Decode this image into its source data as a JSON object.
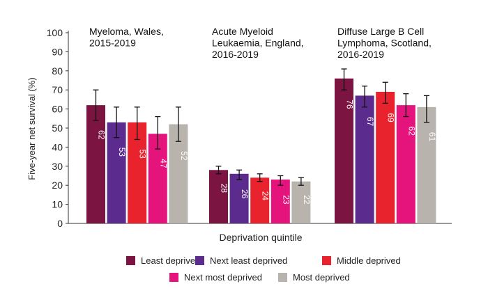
{
  "chart_data": {
    "type": "bar",
    "ylabel": "Five-year net survival (%)",
    "xlabel": "Deprivation quintile",
    "ylim": [
      0,
      100
    ],
    "yticks": [
      0,
      10,
      20,
      30,
      40,
      50,
      60,
      70,
      80,
      90,
      100
    ],
    "grid": false,
    "legend_position": "bottom",
    "groups": [
      {
        "title_lines": [
          "Myeloma, Wales,",
          "2015-2019"
        ],
        "values": [
          62,
          53,
          53,
          47,
          52
        ],
        "value_labels": [
          "62",
          "53",
          "53",
          "47",
          "52"
        ],
        "error_low": [
          54,
          45,
          44,
          39,
          43
        ],
        "error_high": [
          70,
          61,
          61,
          56,
          61
        ]
      },
      {
        "title_lines": [
          "Acute Myeloid",
          "Leukaemia, England,",
          "2016-2019"
        ],
        "values": [
          28,
          26,
          24,
          23,
          22
        ],
        "value_labels": [
          "28",
          "26",
          "24",
          "23",
          "22"
        ],
        "error_low": [
          26,
          23,
          22,
          20,
          20
        ],
        "error_high": [
          30,
          28,
          26,
          25,
          24
        ]
      },
      {
        "title_lines": [
          "Diffuse Large B Cell",
          "Lymphoma, Scotland,",
          "2016-2019"
        ],
        "values": [
          76,
          67,
          69,
          62,
          61
        ],
        "value_labels": [
          "76",
          "67",
          "69",
          "62",
          "61"
        ],
        "error_low": [
          70,
          61,
          63,
          56,
          53
        ],
        "error_high": [
          81,
          72,
          74,
          68,
          67
        ]
      }
    ],
    "series": [
      {
        "name": "Least deprived",
        "color": "#7b1441"
      },
      {
        "name": "Next least deprived",
        "color": "#5b2c8d"
      },
      {
        "name": "Middle deprived",
        "color": "#e8232e"
      },
      {
        "name": "Next most deprived",
        "color": "#e5137c"
      },
      {
        "name": "Most deprived",
        "color": "#b9b3ad"
      }
    ]
  }
}
